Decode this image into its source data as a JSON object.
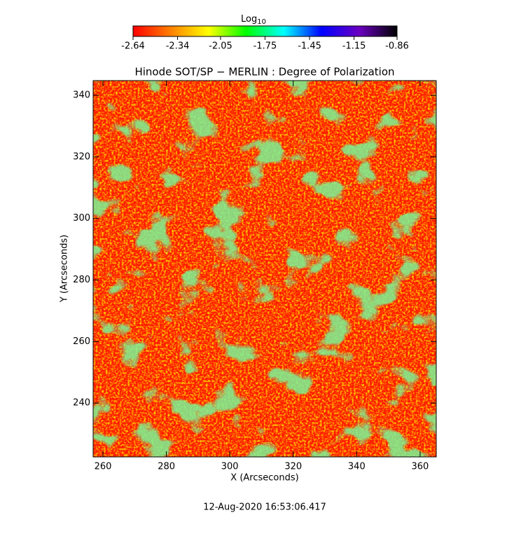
{
  "chart_data": {
    "type": "image",
    "title": "Hinode SOT/SP − MERLIN : Degree of Polarization",
    "xlabel": "X (Arcseconds)",
    "ylabel": "Y (Arcseconds)",
    "footer": "12-Aug-2020 16:53:06.417",
    "xlim": [
      256.9,
      365.1
    ],
    "xticks": [
      260,
      280,
      300,
      320,
      340,
      360
    ],
    "ylim": [
      222.5,
      344.8
    ],
    "yticks": [
      240,
      260,
      280,
      300,
      320,
      340
    ],
    "colorbar_label": "Log",
    "colorbar_label_subscript": "10",
    "clim": [
      -2.64,
      -0.86
    ],
    "cticks": [
      -2.64,
      -2.34,
      -2.05,
      -1.75,
      -1.45,
      -1.15,
      -0.86
    ],
    "colormap": [
      "#ff0000",
      "#ff8000",
      "#ffff00",
      "#00ff00",
      "#00ffff",
      "#0000ff",
      "#6a00c0",
      "#000000"
    ]
  }
}
